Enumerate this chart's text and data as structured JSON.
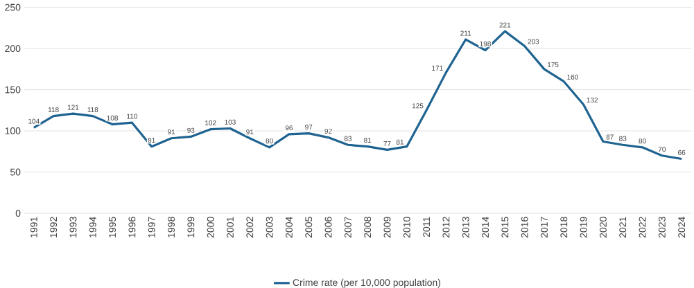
{
  "chart_data": {
    "type": "line",
    "categories": [
      "1991",
      "1992",
      "1993",
      "1994",
      "1995",
      "1996",
      "1997",
      "1998",
      "1999",
      "2000",
      "2001",
      "2002",
      "2003",
      "2004",
      "2005",
      "2006",
      "2007",
      "2008",
      "2009",
      "2010",
      "2011",
      "2012",
      "2013",
      "2014",
      "2015",
      "2016",
      "2017",
      "2018",
      "2019",
      "2020",
      "2021",
      "2022",
      "2023",
      "2024"
    ],
    "series": [
      {
        "name": "Crime rate (per 10,000 population)",
        "color": "#1f6391",
        "values": [
          104,
          118,
          121,
          118,
          108,
          110,
          81,
          91,
          93,
          102,
          103,
          91,
          80,
          96,
          97,
          92,
          83,
          81,
          77,
          81,
          125,
          171,
          211,
          198,
          221,
          203,
          175,
          160,
          132,
          87,
          83,
          80,
          70,
          66
        ]
      }
    ],
    "ylim": [
      0,
      250
    ],
    "yticks": [
      0,
      50,
      100,
      150,
      200,
      250
    ],
    "grid": "y",
    "legend": "bottom",
    "data_labels": true,
    "marker": "none",
    "line_style": "solid"
  }
}
